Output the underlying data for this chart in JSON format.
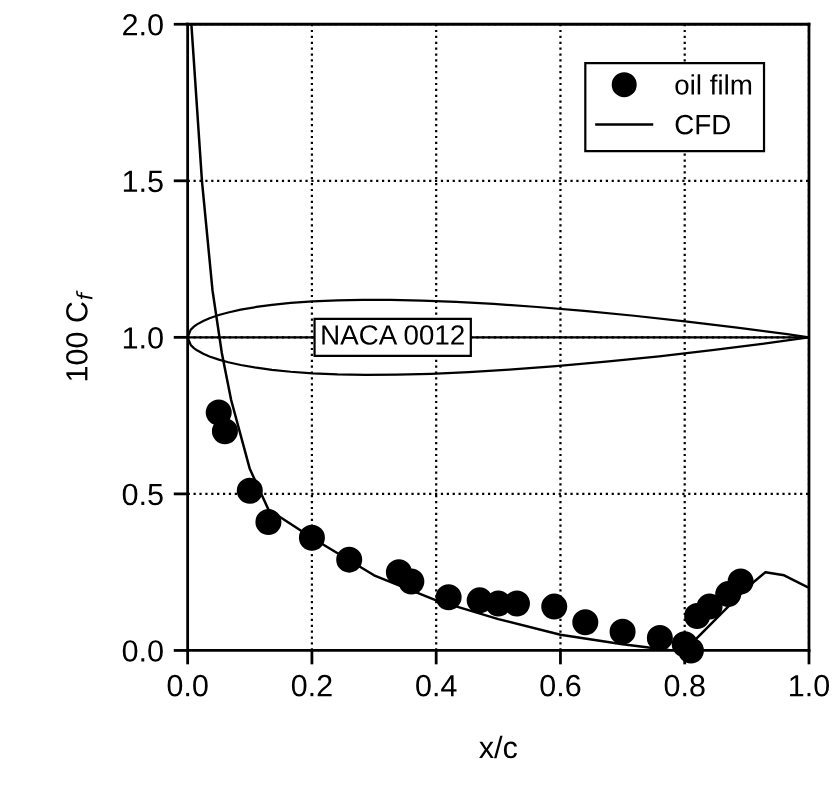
{
  "chart_data": {
    "type": "scatter",
    "xlabel": "x/c",
    "ylabel": "100 C$_{f}$",
    "xlim": [
      0,
      1.0
    ],
    "ylim": [
      0,
      2.0
    ],
    "xticks": [
      {
        "value": 0,
        "label": "0.0"
      },
      0.2,
      0.4,
      0.6,
      0.8,
      {
        "value": 1.0,
        "label": "1.0"
      }
    ],
    "yticks": [
      {
        "value": 0,
        "label": "0.0"
      },
      0.5,
      {
        "value": 1.0,
        "label": "1.0"
      },
      1.5,
      {
        "value": 2.0,
        "label": "2.0"
      }
    ],
    "grid": true,
    "legend": "top right",
    "annotations": [
      "NACA 0012"
    ],
    "ref_lines": [
      {
        "axis": "y",
        "value": 1.0,
        "color": "#000000",
        "line_style": "solid"
      }
    ],
    "series": [
      {
        "name": "oil film",
        "marker": "circle",
        "color": "#000000",
        "x": [
          0.05,
          0.06,
          0.1,
          0.13,
          0.2,
          0.26,
          0.34,
          0.36,
          0.42,
          0.47,
          0.5,
          0.53,
          0.59,
          0.64,
          0.7,
          0.76,
          0.8,
          0.81,
          0.82,
          0.84,
          0.87,
          0.89
        ],
        "values": [
          0.76,
          0.7,
          0.51,
          0.41,
          0.36,
          0.29,
          0.25,
          0.22,
          0.17,
          0.16,
          0.15,
          0.15,
          0.14,
          0.09,
          0.06,
          0.04,
          0.02,
          0.0,
          0.11,
          0.14,
          0.18,
          0.22
        ]
      },
      {
        "name": "CFD",
        "type": "line",
        "line_style": "solid",
        "color": "#000000",
        "x": [
          0.006,
          0.023,
          0.04,
          0.055,
          0.07,
          0.1,
          0.13,
          0.2,
          0.3,
          0.4,
          0.5,
          0.6,
          0.7,
          0.78,
          0.8,
          0.85,
          0.9,
          0.93,
          0.96,
          1.0
        ],
        "values": [
          2.0,
          1.5,
          1.15,
          0.95,
          0.8,
          0.58,
          0.45,
          0.36,
          0.24,
          0.16,
          0.1,
          0.05,
          0.02,
          0.0,
          0.0,
          0.1,
          0.2,
          0.25,
          0.24,
          0.2
        ]
      }
    ]
  }
}
